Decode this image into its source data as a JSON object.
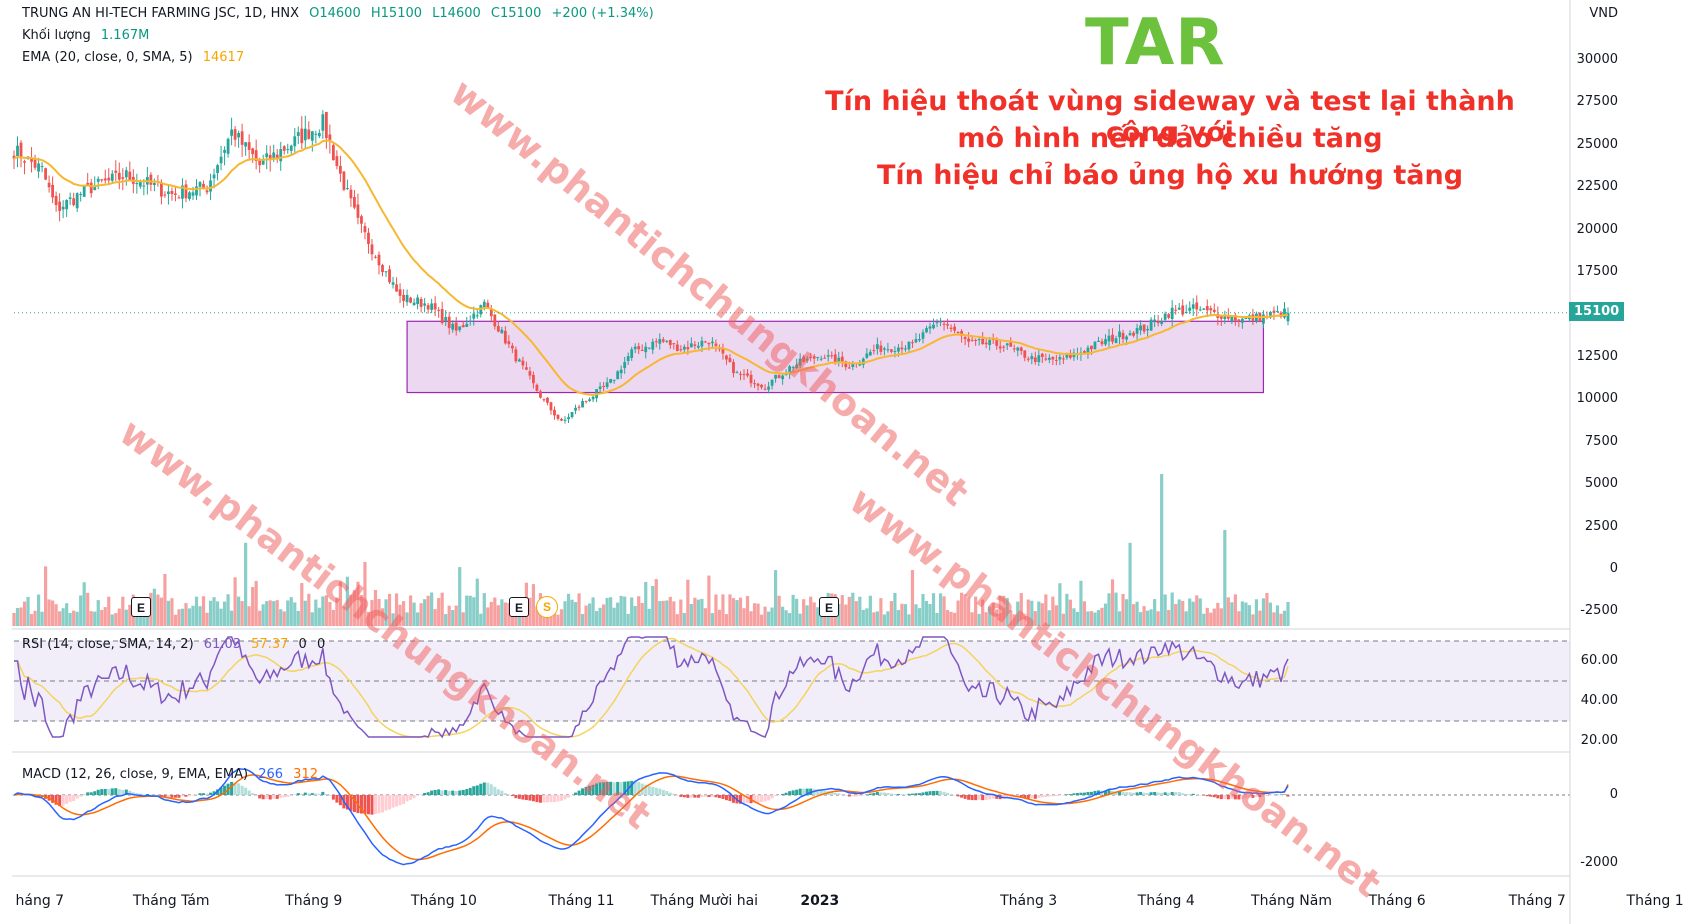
{
  "header": {
    "company": "TRUNG AN HI-TECH FARMING JSC, 1D, HNX",
    "open": "O14600",
    "high": "H15100",
    "low": "L14600",
    "close": "C15100",
    "change": "+200 (+1.34%)",
    "volume_label": "Khối lượng",
    "volume_value": "1.167M",
    "ema_label": "EMA (20, close, 0, SMA, 5)",
    "ema_value": "14617",
    "rsi_label": "RSI (14, close, SMA, 14, 2)",
    "rsi_value": "61.03",
    "rsi_ma_value": "57.37",
    "rsi_extra1": "0",
    "rsi_extra2": "0",
    "macd_label": "MACD (12, 26, close, 9, EMA, EMA)",
    "macd_value": "266",
    "macd_signal_value": "312"
  },
  "ticker": "TAR",
  "annotation": {
    "line1": "Tín hiệu thoát vùng sideway và test lại thành công với",
    "line2": "mô hình nến đảo chiều tăng",
    "line3": "Tín hiệu chỉ báo ủng hộ xu hướng tăng"
  },
  "currency": "VND",
  "last_price_tag": "15100",
  "watermark": "www.phantichchungkhoan.net",
  "events": {
    "earnings": "E",
    "split": "S"
  },
  "colors": {
    "up": "#26a69a",
    "down": "#ef5350",
    "ema": "#f7b731",
    "zone_fill": "#e1bee7",
    "zone_border": "#9c27b0",
    "ticker": "#6cc13d",
    "annotation": "#f0312a",
    "rsi": "#7e57c2",
    "macd": "#2962ff",
    "signal": "#ff6d00"
  },
  "chart_data": [
    {
      "type": "candlestick",
      "title": "TRUNG AN HI-TECH FARMING JSC, 1D, HNX",
      "y_ticks": [
        "30000",
        "27500",
        "25000",
        "22500",
        "20000",
        "17500",
        "15000",
        "12500",
        "10000",
        "7500",
        "5000",
        "2500",
        "0",
        "-2500"
      ],
      "x_ticks": [
        "háng 7",
        "Tháng Tám",
        "Tháng 9",
        "Tháng 10",
        "Tháng 11",
        "Tháng Mười hai",
        "2023",
        "Tháng 3",
        "Tháng 4",
        "Tháng Năm",
        "Tháng 6",
        "Tháng 7",
        "Tháng 1"
      ],
      "close_anchors": [
        [
          0,
          24700
        ],
        [
          8,
          23500
        ],
        [
          12,
          21200
        ],
        [
          22,
          22500
        ],
        [
          32,
          23200
        ],
        [
          45,
          22100
        ],
        [
          55,
          22500
        ],
        [
          62,
          25800
        ],
        [
          70,
          23800
        ],
        [
          82,
          25500
        ],
        [
          88,
          26300
        ],
        [
          92,
          23800
        ],
        [
          98,
          20400
        ],
        [
          104,
          18200
        ],
        [
          110,
          16000
        ],
        [
          118,
          15600
        ],
        [
          126,
          14000
        ],
        [
          134,
          15600
        ],
        [
          142,
          12800
        ],
        [
          150,
          10200
        ],
        [
          156,
          8600
        ],
        [
          162,
          9800
        ],
        [
          170,
          11000
        ],
        [
          176,
          12800
        ],
        [
          184,
          13500
        ],
        [
          190,
          13000
        ],
        [
          198,
          13500
        ],
        [
          206,
          11500
        ],
        [
          214,
          10800
        ],
        [
          222,
          12000
        ],
        [
          230,
          12600
        ],
        [
          238,
          12000
        ],
        [
          246,
          13000
        ],
        [
          256,
          13200
        ],
        [
          264,
          14700
        ],
        [
          272,
          13300
        ],
        [
          282,
          13200
        ],
        [
          290,
          12400
        ],
        [
          298,
          12300
        ],
        [
          306,
          13000
        ],
        [
          314,
          13700
        ],
        [
          322,
          14200
        ],
        [
          330,
          15200
        ],
        [
          336,
          15300
        ],
        [
          344,
          15000
        ],
        [
          350,
          14700
        ],
        [
          356,
          14900
        ],
        [
          362,
          15100
        ]
      ],
      "ema": "EMA 20 of close; last 14617",
      "sideway_zone": {
        "top": 14600,
        "bottom": 10400,
        "from_index": 112,
        "to_index": 356
      },
      "last_close": 15100
    },
    {
      "type": "bar",
      "title": "Khối lượng",
      "last_value": "1.167M",
      "spikes": [
        [
          66,
          0.52
        ],
        [
          100,
          0.4
        ],
        [
          256,
          0.35
        ],
        [
          318,
          0.52
        ],
        [
          327,
          0.95
        ],
        [
          345,
          0.6
        ]
      ]
    },
    {
      "type": "line",
      "title": "RSI (14, close, SMA, 14, 2)",
      "y_ticks": [
        "60.00",
        "40.00",
        "20.00"
      ],
      "bands": [
        70,
        50,
        30
      ],
      "last_rsi": 61.03,
      "last_ma": 57.37
    },
    {
      "type": "line",
      "title": "MACD (12, 26, close, 9, EMA, EMA)",
      "y_ticks": [
        "0",
        "-2000"
      ],
      "last_macd": 266,
      "last_signal": 312
    }
  ]
}
